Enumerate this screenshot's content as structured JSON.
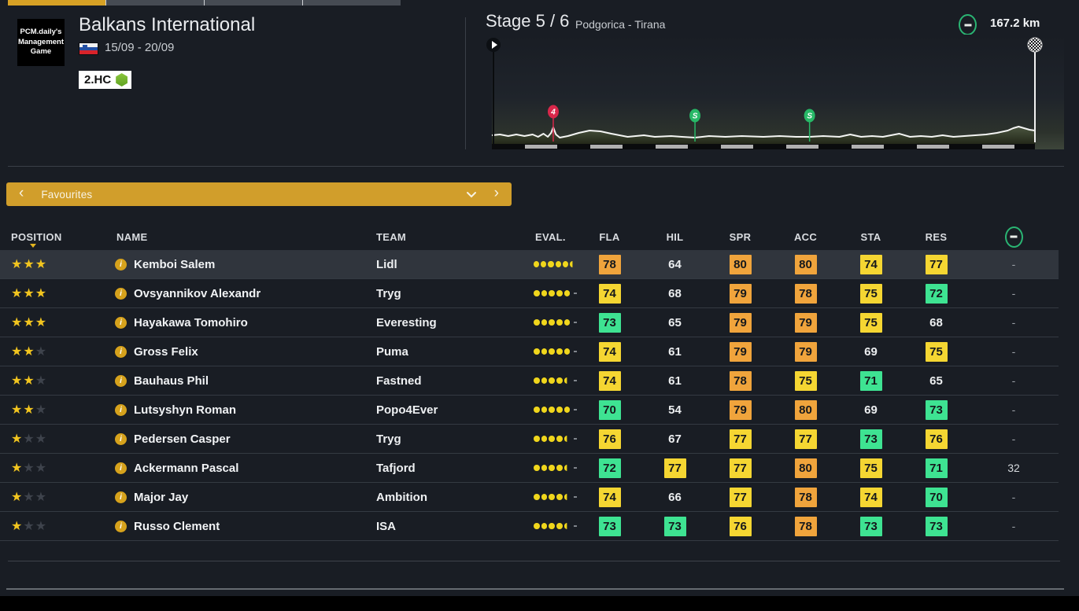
{
  "colors": {
    "accent": "#d19e2b",
    "tab_active": "#d7a125",
    "stat_high": "#f0a43c",
    "stat_mid": "#f5d632",
    "stat_low": "#3ee392",
    "star": "#f2c51f",
    "eval_dot": "#f0d61c",
    "climb_cat4": "#d8274a",
    "sprint": "#27b867",
    "distance_ring": "#2ab573"
  },
  "topbar": {
    "tabs": [
      {
        "active": true
      },
      {
        "active": false
      },
      {
        "active": false
      },
      {
        "active": false
      }
    ]
  },
  "race": {
    "logo_lines": [
      "PCM.daily's",
      "Management",
      "Game"
    ],
    "title": "Balkans International",
    "flag": "slovenia",
    "dates": "15/09 - 20/09",
    "category": "2.HC"
  },
  "stage": {
    "label": "Stage 5 / 6",
    "route": "Podgorica - Tirana",
    "distance": "167.2 km"
  },
  "chart_data": {
    "type": "area",
    "title": "Stage 5 elevation profile",
    "route": "Podgorica - Tirana",
    "distance_km": 167.2,
    "markers": [
      {
        "type": "climb",
        "label": "4",
        "category": 4,
        "pos": 0.113,
        "km_approx": 18.9
      },
      {
        "type": "sprint",
        "label": "S",
        "pos": 0.374,
        "km_approx": 62.5
      },
      {
        "type": "sprint",
        "label": "S",
        "pos": 0.585,
        "km_approx": 97.8
      }
    ],
    "elevation_points": [
      [
        0,
        11
      ],
      [
        0.015,
        12
      ],
      [
        0.03,
        10
      ],
      [
        0.045,
        12
      ],
      [
        0.06,
        10
      ],
      [
        0.075,
        12
      ],
      [
        0.085,
        9
      ],
      [
        0.095,
        13
      ],
      [
        0.103,
        9
      ],
      [
        0.109,
        14
      ],
      [
        0.113,
        21
      ],
      [
        0.118,
        12
      ],
      [
        0.125,
        8
      ],
      [
        0.14,
        10
      ],
      [
        0.16,
        14
      ],
      [
        0.18,
        17
      ],
      [
        0.2,
        16
      ],
      [
        0.22,
        13
      ],
      [
        0.25,
        9
      ],
      [
        0.28,
        11
      ],
      [
        0.3,
        9
      ],
      [
        0.33,
        10
      ],
      [
        0.35,
        9
      ],
      [
        0.374,
        8
      ],
      [
        0.4,
        10
      ],
      [
        0.43,
        9
      ],
      [
        0.46,
        10
      ],
      [
        0.5,
        9
      ],
      [
        0.53,
        10
      ],
      [
        0.56,
        9
      ],
      [
        0.585,
        9
      ],
      [
        0.61,
        10
      ],
      [
        0.64,
        9
      ],
      [
        0.66,
        12
      ],
      [
        0.68,
        9
      ],
      [
        0.7,
        10
      ],
      [
        0.72,
        9
      ],
      [
        0.75,
        13
      ],
      [
        0.77,
        9
      ],
      [
        0.79,
        10
      ],
      [
        0.81,
        9
      ],
      [
        0.83,
        11
      ],
      [
        0.85,
        9
      ],
      [
        0.87,
        10
      ],
      [
        0.89,
        11
      ],
      [
        0.91,
        12
      ],
      [
        0.93,
        14
      ],
      [
        0.95,
        17
      ],
      [
        0.96,
        20
      ],
      [
        0.97,
        22
      ],
      [
        0.98,
        20
      ],
      [
        0.99,
        18
      ],
      [
        1,
        17
      ]
    ]
  },
  "favourites": {
    "label": "Favourites",
    "prev": "‹",
    "next": "›"
  },
  "table": {
    "headers": [
      "POSITION",
      "NAME",
      "TEAM",
      "EVAL.",
      "FLA",
      "HIL",
      "SPR",
      "ACC",
      "STA",
      "RES"
    ],
    "sorted_by": "POSITION",
    "tiers": {
      "high_min": 78,
      "mid_min": 74,
      "low_min": 70
    },
    "info_glyph": "i",
    "rows": [
      {
        "stars": 3,
        "name": "Kemboi Salem",
        "team": "Lidl",
        "eval": {
          "full": 5,
          "half": true,
          "dash": false
        },
        "stats": [
          78,
          64,
          80,
          80,
          74,
          77
        ],
        "extra": "-",
        "highlight": true
      },
      {
        "stars": 3,
        "name": "Ovsyannikov Alexandr",
        "team": "Tryg",
        "eval": {
          "full": 5,
          "half": false,
          "dash": true
        },
        "stats": [
          74,
          68,
          79,
          78,
          75,
          72
        ],
        "extra": "-"
      },
      {
        "stars": 3,
        "name": "Hayakawa Tomohiro",
        "team": "Everesting",
        "eval": {
          "full": 5,
          "half": false,
          "dash": true
        },
        "stats": [
          73,
          65,
          79,
          79,
          75,
          68
        ],
        "extra": "-"
      },
      {
        "stars": 2,
        "name": "Gross Felix",
        "team": "Puma",
        "eval": {
          "full": 5,
          "half": false,
          "dash": true
        },
        "stats": [
          74,
          61,
          79,
          79,
          69,
          75
        ],
        "extra": "-"
      },
      {
        "stars": 2,
        "name": "Bauhaus Phil",
        "team": "Fastned",
        "eval": {
          "full": 4,
          "half": true,
          "dash": true
        },
        "stats": [
          74,
          61,
          78,
          75,
          71,
          65
        ],
        "extra": "-"
      },
      {
        "stars": 2,
        "name": "Lutsyshyn Roman",
        "team": "Popo4Ever",
        "eval": {
          "full": 5,
          "half": false,
          "dash": true
        },
        "stats": [
          70,
          54,
          79,
          80,
          69,
          73
        ],
        "extra": "-"
      },
      {
        "stars": 1,
        "name": "Pedersen Casper",
        "team": "Tryg",
        "eval": {
          "full": 4,
          "half": true,
          "dash": true
        },
        "stats": [
          76,
          67,
          77,
          77,
          73,
          76
        ],
        "extra": "-"
      },
      {
        "stars": 1,
        "name": "Ackermann Pascal",
        "team": "Tafjord",
        "eval": {
          "full": 4,
          "half": true,
          "dash": true
        },
        "stats": [
          72,
          77,
          77,
          80,
          75,
          71
        ],
        "extra": "32"
      },
      {
        "stars": 1,
        "name": "Major Jay",
        "team": "Ambition",
        "eval": {
          "full": 4,
          "half": true,
          "dash": true
        },
        "stats": [
          74,
          66,
          77,
          78,
          74,
          70
        ],
        "extra": "-"
      },
      {
        "stars": 1,
        "name": "Russo Clement",
        "team": "ISA",
        "eval": {
          "full": 4,
          "half": true,
          "dash": true
        },
        "stats": [
          73,
          73,
          76,
          78,
          73,
          73
        ],
        "extra": "-"
      }
    ]
  }
}
